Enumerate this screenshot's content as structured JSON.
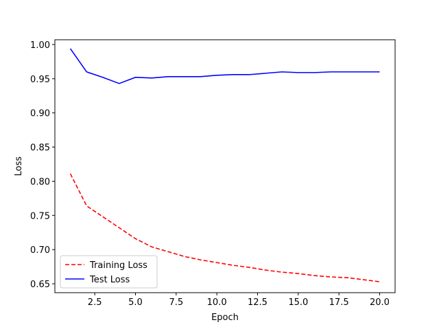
{
  "chart_data": {
    "type": "line",
    "title": "",
    "xlabel": "Epoch",
    "ylabel": "Loss",
    "xlim": [
      0.05,
      20.95
    ],
    "ylim": [
      0.637,
      1.007
    ],
    "xticks": [
      2.5,
      5.0,
      7.5,
      10.0,
      12.5,
      15.0,
      17.5,
      20.0
    ],
    "xtick_labels": [
      "2.5",
      "5.0",
      "7.5",
      "10.0",
      "12.5",
      "15.0",
      "17.5",
      "20.0"
    ],
    "yticks": [
      0.65,
      0.7,
      0.75,
      0.8,
      0.85,
      0.9,
      0.95,
      1.0
    ],
    "ytick_labels": [
      "0.65",
      "0.70",
      "0.75",
      "0.80",
      "0.85",
      "0.90",
      "0.95",
      "1.00"
    ],
    "grid": false,
    "legend_position": "lower-left",
    "x": [
      1,
      2,
      3,
      4,
      5,
      6,
      7,
      8,
      9,
      10,
      11,
      12,
      13,
      14,
      15,
      16,
      17,
      18,
      19,
      20
    ],
    "series": [
      {
        "name": "Training Loss",
        "color": "#ff0000",
        "style": "dashed",
        "values": [
          0.811,
          0.764,
          0.748,
          0.732,
          0.716,
          0.704,
          0.697,
          0.69,
          0.685,
          0.681,
          0.677,
          0.674,
          0.67,
          0.667,
          0.665,
          0.662,
          0.66,
          0.659,
          0.656,
          0.653
        ]
      },
      {
        "name": "Test Loss",
        "color": "#0000ff",
        "style": "solid",
        "values": [
          0.994,
          0.96,
          0.952,
          0.943,
          0.952,
          0.951,
          0.953,
          0.953,
          0.953,
          0.955,
          0.956,
          0.956,
          0.958,
          0.96,
          0.959,
          0.959,
          0.96,
          0.96,
          0.96,
          0.96
        ]
      }
    ]
  }
}
